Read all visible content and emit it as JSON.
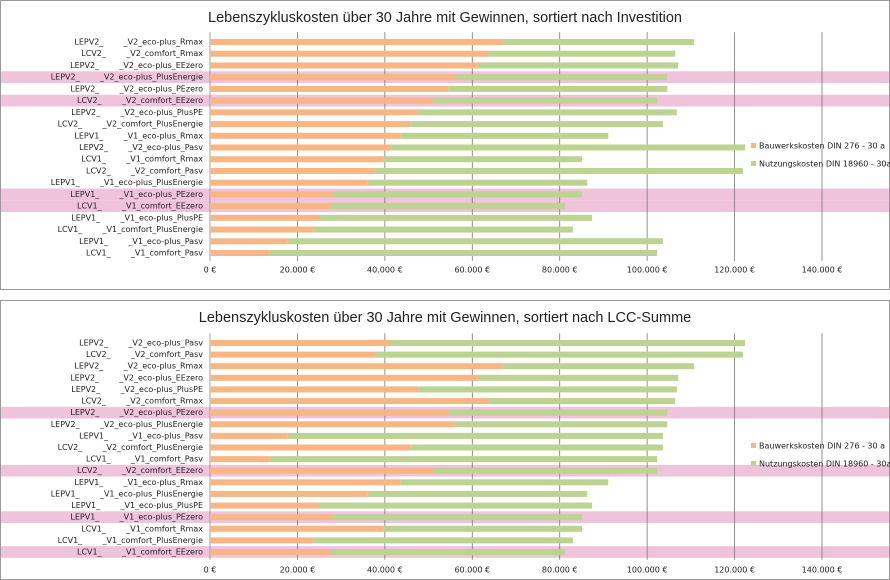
{
  "chart_data": [
    {
      "type": "stacked-barh",
      "title": "Lebenszykluskosten über 30 Jahre mit Gewinnen, sortiert nach Investition",
      "categories": [
        "LEPV2_        _V2_eco-plus_Rmax",
        "LCV2_        _V2_comfort_Rmax",
        "LEPV2_        _V2_eco-plus_EEzero",
        "LEPV2_        _V2_eco-plus_PlusEnergie",
        "LEPV2_        _V2_eco-plus_PEzero",
        "LCV2_        _V2_comfort_EEzero",
        "LEPV2_        _V2_eco-plus_PlusPE",
        "LCV2_        _V2_comfort_PlusEnergie",
        "LEPV1_        _V1_eco-plus_Rmax",
        "LEPV2_        _V2_eco-plus_Pasv",
        "LCV1_        _V1_comfort_Rmax",
        "LCV2_        _V2_comfort_Pasv",
        "LEPV1_        _V1_eco-plus_PlusEnergie",
        "LEPV1_        _V1_eco-plus_PEzero",
        "LCV1_        _V1_comfort_EEzero",
        "LEPV1_        _V1_eco-plus_PlusPE",
        "LCV1_        _V1_comfort_PlusEnergie",
        "LEPV1_        _V1_eco-plus_Pasv",
        "LCV1_        _V1_comfort_Pasv"
      ],
      "series": [
        {
          "name": "Bauwerkskosten DIN 276 - 30 a",
          "color": "#f7b683",
          "values": [
            67000,
            63600,
            61300,
            56000,
            54500,
            51000,
            47600,
            45800,
            43500,
            41200,
            39600,
            37700,
            36100,
            28100,
            27500,
            24700,
            23600,
            17800,
            13700
          ]
        },
        {
          "name": "Nutzungskosten DIN 18960 - 30a",
          "color": "#bcd391",
          "values": [
            43700,
            42800,
            45800,
            48600,
            50100,
            51300,
            59200,
            57800,
            47600,
            81200,
            45500,
            84200,
            50200,
            57000,
            53700,
            62700,
            59400,
            85800,
            88600
          ]
        }
      ],
      "highlighted_categories": [
        3,
        5,
        13,
        14
      ],
      "xlim": [
        0,
        140000
      ],
      "xticks": [
        {
          "value": 0,
          "label": "0 €"
        },
        {
          "value": 20000,
          "label": "20.000 €"
        },
        {
          "value": 40000,
          "label": "40.000 €"
        },
        {
          "value": 60000,
          "label": "60.000 €"
        },
        {
          "value": 80000,
          "label": "80.000 €"
        },
        {
          "value": 100000,
          "label": "100.000 €"
        },
        {
          "value": 120000,
          "label": "120.000 €"
        },
        {
          "value": 140000,
          "label": "140.000 €"
        }
      ],
      "grid": true,
      "legend": "right"
    },
    {
      "type": "stacked-barh",
      "title": "Lebenszykluskosten über 30 Jahre mit Gewinnen, sortiert nach LCC-Summe",
      "categories": [
        "LEPV2_        _V2_eco-plus_Pasv",
        "LCV2_        _V2_comfort_Pasv",
        "LEPV2_        _V2_eco-plus_Rmax",
        "LEPV2_        _V2_eco-plus_EEzero",
        "LEPV2_        _V2_eco-plus_PlusPE",
        "LCV2_        _V2_comfort_Rmax",
        "LEPV2_        _V2_eco-plus_PEzero",
        "LEPV2_        _V2_eco-plus_PlusEnergie",
        "LEPV1_        _V1_eco-plus_Pasv",
        "LCV2_        _V2_comfort_PlusEnergie",
        "LCV1_        _V1_comfort_Pasv",
        "LCV2_        _V2_comfort_EEzero",
        "LEPV1_        _V1_eco-plus_Rmax",
        "LEPV1_        _V1_eco-plus_PlusEnergie",
        "LEPV1_        _V1_eco-plus_PlusPE",
        "LEPV1_        _V1_eco-plus_PEzero",
        "LCV1_        _V1_comfort_Rmax",
        "LCV1_        _V1_comfort_PlusEnergie",
        "LCV1_        _V1_comfort_EEzero"
      ],
      "series": [
        {
          "name": "Bauwerkskosten DIN 276 - 30 a",
          "color": "#f7b683",
          "values": [
            41200,
            37700,
            67000,
            61300,
            47600,
            63600,
            54500,
            56000,
            17800,
            45800,
            13700,
            51000,
            43500,
            36100,
            24700,
            28100,
            39600,
            23600,
            27500
          ]
        },
        {
          "name": "Nutzungskosten DIN 18960 - 30a",
          "color": "#bcd391",
          "values": [
            81200,
            84200,
            43700,
            45800,
            59200,
            42800,
            50100,
            48600,
            85800,
            57800,
            88600,
            51300,
            47600,
            50200,
            62700,
            57000,
            45500,
            59400,
            53700
          ]
        }
      ],
      "highlighted_categories": [
        6,
        11,
        15,
        18
      ],
      "xlim": [
        0,
        140000
      ],
      "xticks": [
        {
          "value": 0,
          "label": "0 €"
        },
        {
          "value": 20000,
          "label": "20.000 €"
        },
        {
          "value": 40000,
          "label": "40.000 €"
        },
        {
          "value": 60000,
          "label": "60.000 €"
        },
        {
          "value": 80000,
          "label": "80.000 €"
        },
        {
          "value": 100000,
          "label": "100.000 €"
        },
        {
          "value": 120000,
          "label": "120.000 €"
        },
        {
          "value": 140000,
          "label": "140.000 €"
        }
      ],
      "grid": true,
      "legend": "right"
    }
  ]
}
